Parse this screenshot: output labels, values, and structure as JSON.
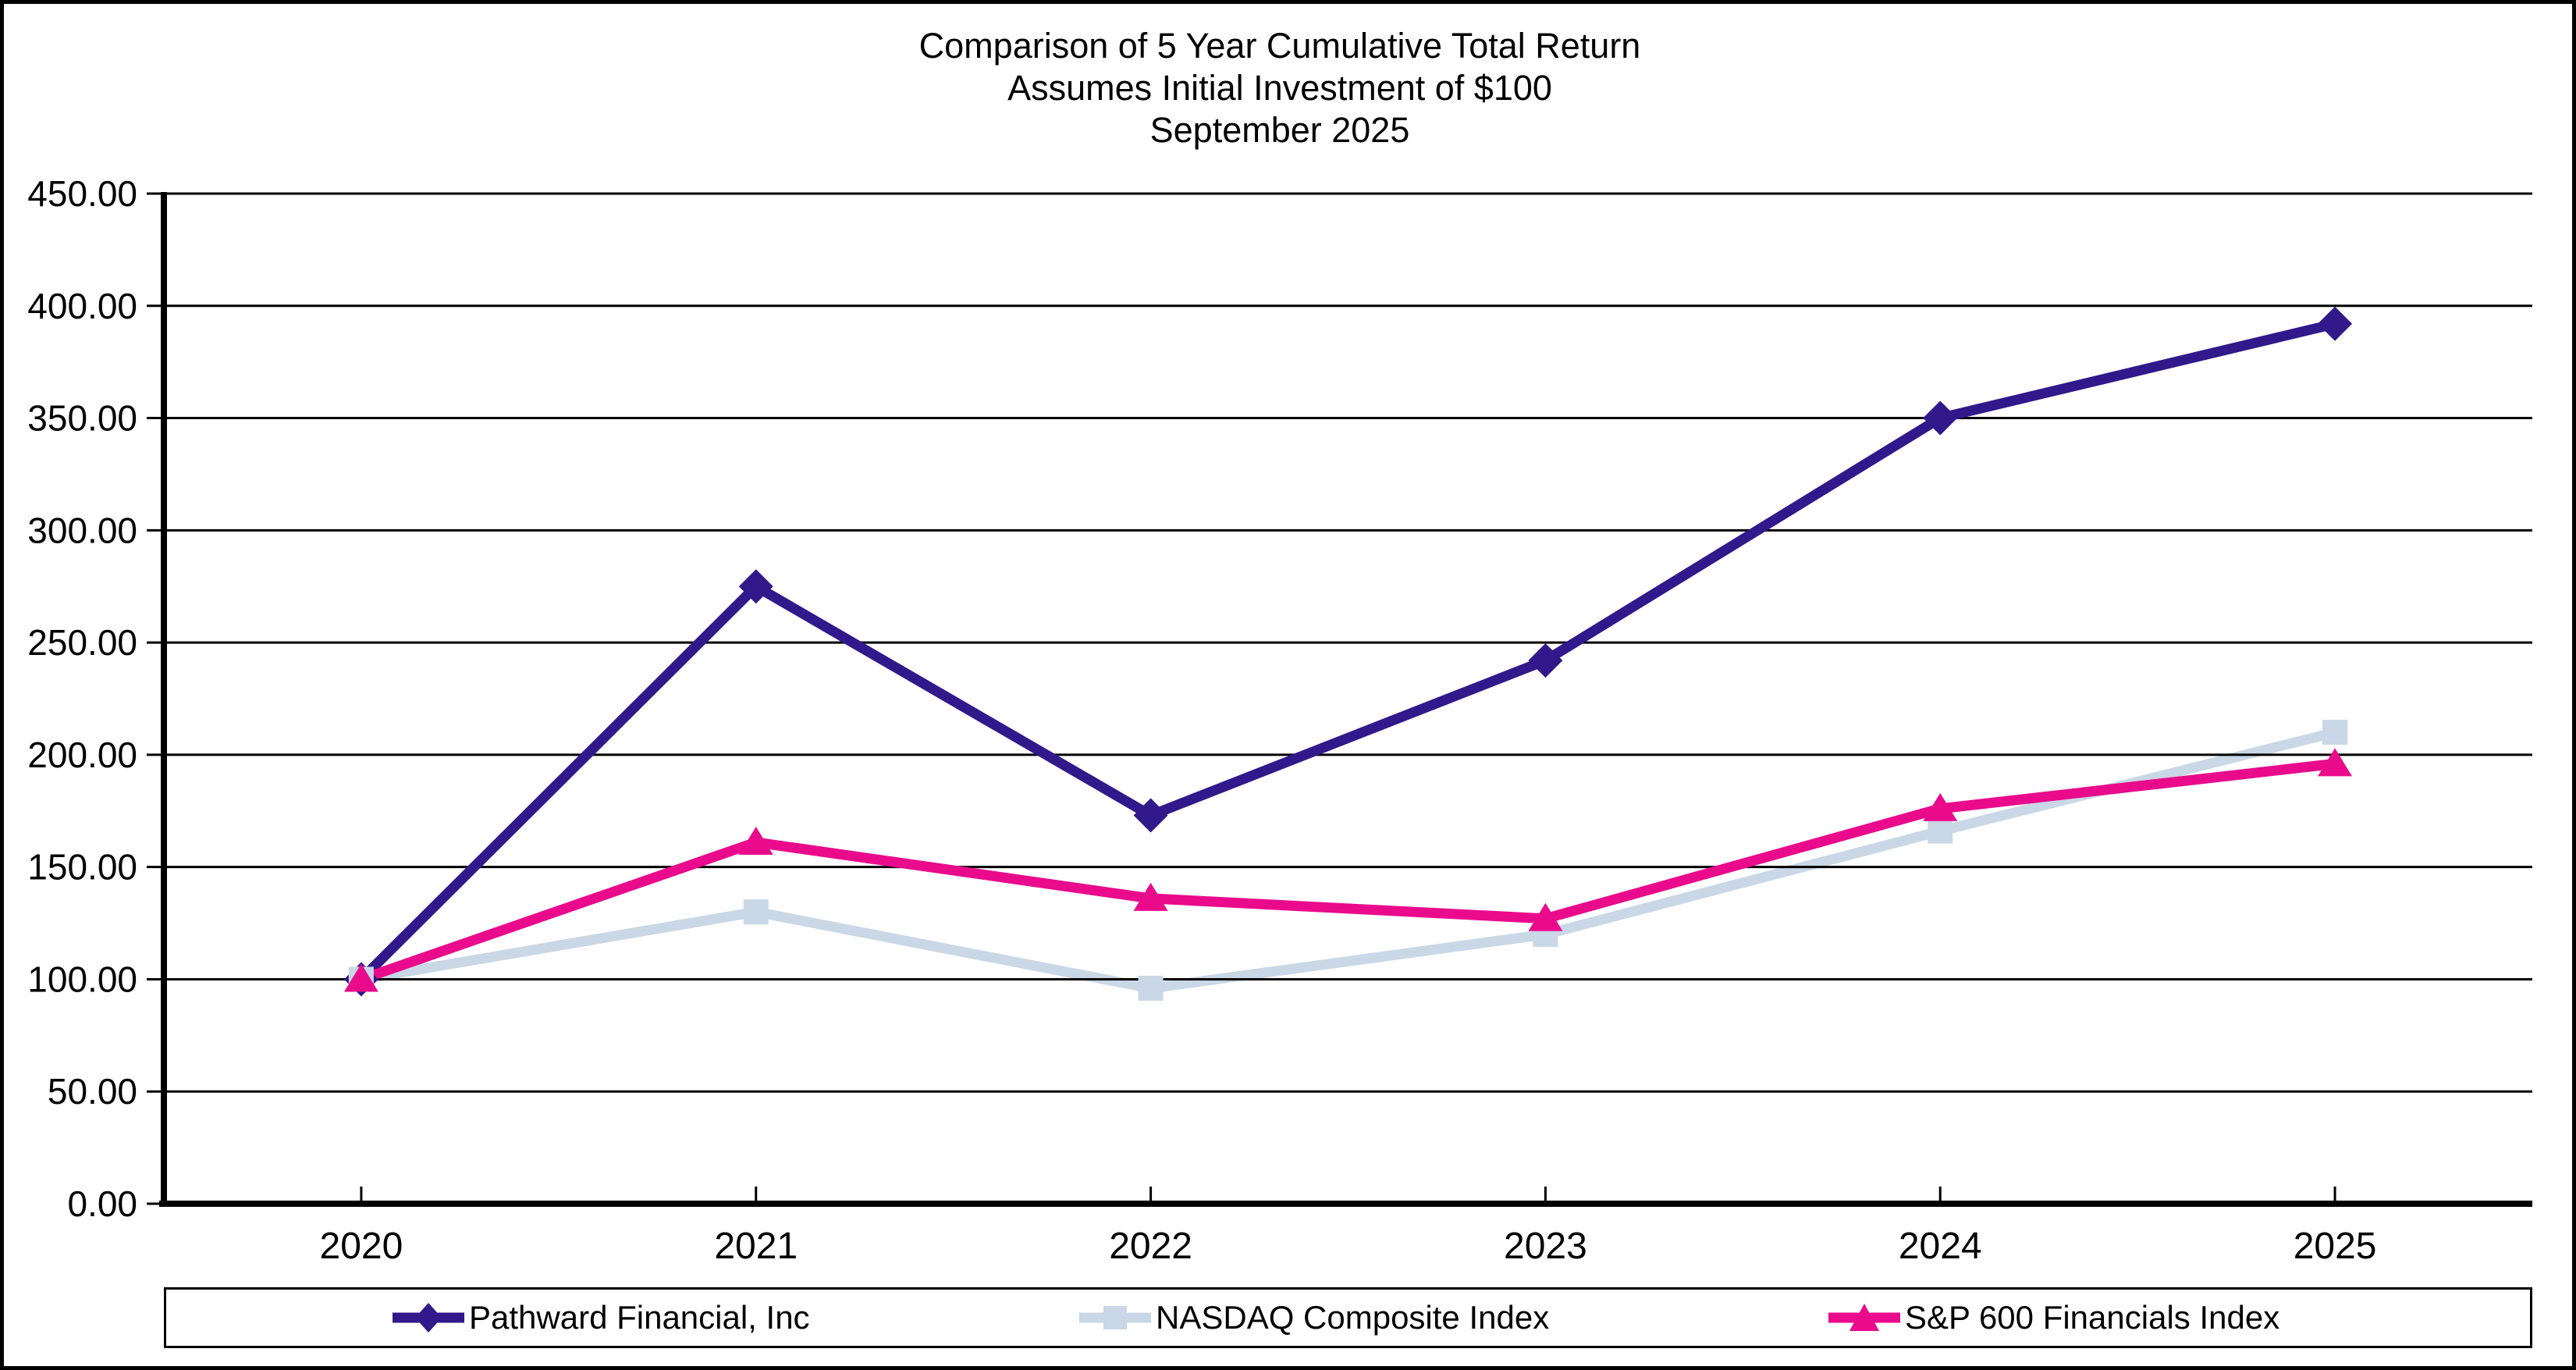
{
  "title": {
    "line1": "Comparison of 5 Year Cumulative Total Return",
    "line2": "Assumes Initial Investment of $100",
    "line3": "September 2025"
  },
  "chart_data": {
    "type": "line",
    "title": "Comparison of 5 Year Cumulative Total Return — Assumes Initial Investment of $100 — September 2025",
    "categories": [
      "2020",
      "2021",
      "2022",
      "2023",
      "2024",
      "2025"
    ],
    "series": [
      {
        "name": "Pathward Financial, Inc",
        "color": "#31188B",
        "marker": "diamond",
        "values": [
          100,
          275,
          173,
          242,
          350,
          392
        ]
      },
      {
        "name": "NASDAQ Composite Index",
        "color": "#C9D7E6",
        "marker": "square",
        "values": [
          100,
          130,
          96,
          120,
          166,
          210
        ]
      },
      {
        "name": "S&P 600 Financials Index",
        "color": "#EA0A8C",
        "marker": "triangle",
        "values": [
          100,
          161,
          136,
          127,
          176,
          196
        ]
      }
    ],
    "ylim": [
      0,
      450
    ],
    "y_tick_step": 50,
    "y_tick_labels": [
      "0.00",
      "50.00",
      "100.00",
      "150.00",
      "200.00",
      "250.00",
      "300.00",
      "350.00",
      "400.00",
      "450.00"
    ],
    "grid": true,
    "gridline_color": "#000000",
    "axis_color": "#000000",
    "legend_position": "bottom"
  }
}
